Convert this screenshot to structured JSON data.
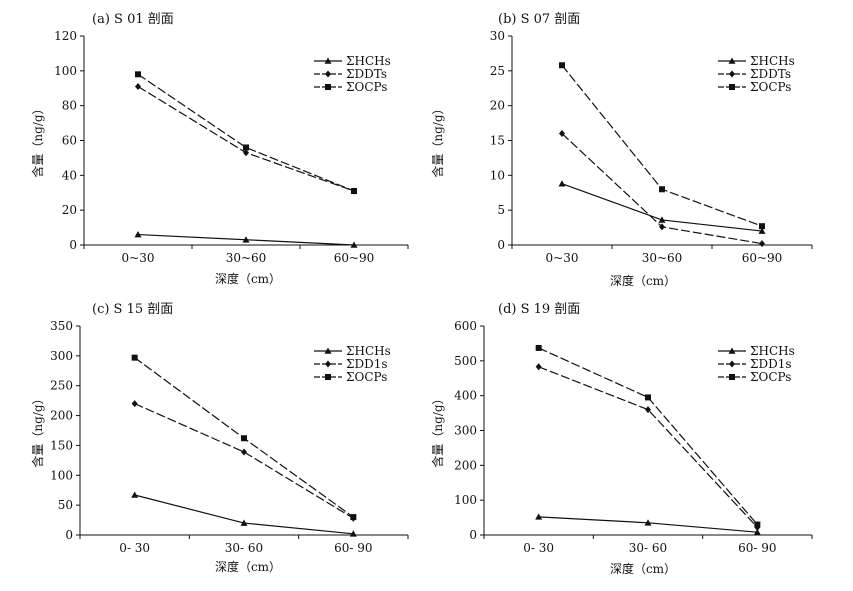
{
  "chart_data": [
    {
      "type": "line",
      "title": "(a)  S 01 剖面",
      "xlabel": "深度（cm）",
      "ylabel": "含量（ng/g）",
      "categories": [
        "0~30",
        "30~60",
        "60~90"
      ],
      "ylim": [
        0,
        120
      ],
      "yticks": [
        0,
        20,
        40,
        60,
        80,
        100,
        120
      ],
      "series": [
        {
          "name": "ΣHCHs",
          "marker": "triangle",
          "values": [
            6,
            3,
            0
          ]
        },
        {
          "name": "ΣDDTs",
          "marker": "diamond",
          "values": [
            91,
            53,
            31
          ]
        },
        {
          "name": "ΣOCPs",
          "marker": "square",
          "values": [
            98,
            56,
            31
          ]
        }
      ]
    },
    {
      "type": "line",
      "title": "(b)  S 07 剖面",
      "xlabel": "深度（cm）",
      "ylabel": "含量（ng/g）",
      "categories": [
        "0~30",
        "30~60",
        "60~90"
      ],
      "ylim": [
        0,
        30
      ],
      "yticks": [
        0,
        5,
        10,
        15,
        20,
        25,
        30
      ],
      "series": [
        {
          "name": "ΣHCHs",
          "marker": "triangle",
          "values": [
            8.8,
            3.6,
            2.0
          ]
        },
        {
          "name": "ΣDDTs",
          "marker": "diamond",
          "values": [
            16,
            2.6,
            0.2
          ]
        },
        {
          "name": "ΣOCPs",
          "marker": "square",
          "values": [
            25.8,
            8.0,
            2.7
          ]
        }
      ]
    },
    {
      "type": "line",
      "title": "(c)  S 15 剖面",
      "xlabel": "深度（cm）",
      "ylabel": "含量（ng/g）",
      "categories": [
        "0- 30",
        "30- 60",
        "60- 90"
      ],
      "ylim": [
        0,
        350
      ],
      "yticks": [
        0,
        50,
        100,
        150,
        200,
        250,
        300,
        350
      ],
      "series": [
        {
          "name": "ΣHCHs",
          "marker": "triangle",
          "values": [
            67,
            20,
            2
          ]
        },
        {
          "name": "ΣDD1s",
          "marker": "diamond",
          "values": [
            220,
            139,
            28
          ]
        },
        {
          "name": "ΣOCPs",
          "marker": "square",
          "values": [
            297,
            162,
            30
          ]
        }
      ]
    },
    {
      "type": "line",
      "title": "(d)  S 19 剖面",
      "xlabel": "深度（cm）",
      "ylabel": "含量（ng/g）",
      "categories": [
        "0- 30",
        "30- 60",
        "60- 90"
      ],
      "ylim": [
        0,
        600
      ],
      "yticks": [
        0,
        100,
        200,
        300,
        400,
        500,
        600
      ],
      "series": [
        {
          "name": "ΣHCHs",
          "marker": "triangle",
          "values": [
            52,
            35,
            8
          ]
        },
        {
          "name": "ΣDD1s",
          "marker": "diamond",
          "values": [
            483,
            360,
            22
          ]
        },
        {
          "name": "ΣOCPs",
          "marker": "square",
          "values": [
            537,
            395,
            30
          ]
        }
      ]
    }
  ]
}
